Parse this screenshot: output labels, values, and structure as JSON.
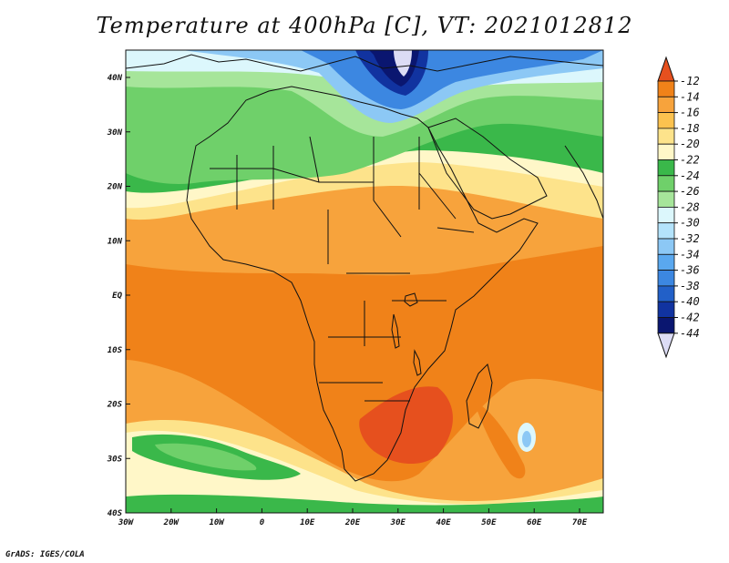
{
  "title": "Temperature at 400hPa [C], VT: 2021012812",
  "credit": "GrADS: IGES/COLA",
  "lat_labels": [
    "40N",
    "30N",
    "20N",
    "10N",
    "EQ",
    "10S",
    "20S",
    "30S",
    "40S"
  ],
  "lon_labels": [
    "30W",
    "20W",
    "10W",
    "0",
    "10E",
    "20E",
    "30E",
    "40E",
    "50E",
    "60E",
    "70E"
  ],
  "colorbar": {
    "labels": [
      "-12",
      "-14",
      "-16",
      "-18",
      "-20",
      "-22",
      "-24",
      "-26",
      "-28",
      "-30",
      "-32",
      "-34",
      "-36",
      "-38",
      "-40",
      "-42",
      "-44"
    ],
    "colors": [
      "#e6501e",
      "#f08219",
      "#f7a33c",
      "#fcc24f",
      "#fde38b",
      "#fff7c8",
      "#3ab84a",
      "#6fd06a",
      "#a6e59a",
      "#dcf7fc",
      "#b4e3fb",
      "#8cc8f5",
      "#5aa8ef",
      "#3c87e1",
      "#2260c8",
      "#1133a0",
      "#0a1670",
      "#dcdcf5"
    ],
    "top_color": "#e6501e",
    "bottom_color": "#dcdcf5"
  },
  "map_colors": {
    "very_hot": "#e6501e",
    "hot": "#f08219",
    "warm": "#f7a33c",
    "mild": "#fcc24f",
    "pale": "#fde38b",
    "cream": "#fff7c8",
    "green_dark": "#3ab84a",
    "green": "#6fd06a",
    "green_light": "#a6e59a",
    "cyan_pale": "#dcf7fc",
    "blue_light": "#8cc8f5",
    "blue": "#3c87e1",
    "blue_dark": "#1133a0",
    "navy": "#0a1670",
    "lavender": "#dcdcf5"
  }
}
